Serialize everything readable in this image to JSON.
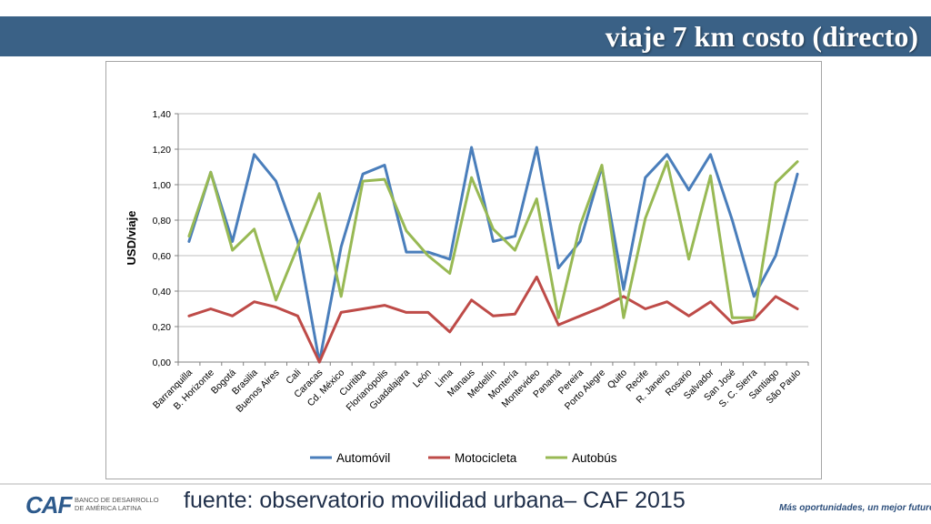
{
  "slide": {
    "title": "viaje 7 km costo (directo)",
    "source": "fuente: observatorio movilidad urbana– CAF 2015",
    "slogan": "Más oportunidades, un mejor futuro.",
    "logo": {
      "mark": "CAF",
      "text_line1": "BANCO DE DESARROLLO",
      "text_line2": "DE AMÉRICA LATINA"
    }
  },
  "colors": {
    "title_bar": "#3a6186",
    "automovil": "#4a7ebb",
    "motocicleta": "#be4b48",
    "autobus": "#98b954"
  },
  "chart_data": {
    "type": "line",
    "title": "",
    "xlabel": "",
    "ylabel": "USD/viaje",
    "ylim": [
      0,
      1.4
    ],
    "yticks": [
      "0,00",
      "0,20",
      "0,40",
      "0,60",
      "0,80",
      "1,00",
      "1,20",
      "1,40"
    ],
    "grid": true,
    "legend_position": "bottom",
    "categories": [
      "Barranquilla",
      "B. Horizonte",
      "Bogotá",
      "Brasilia",
      "Buenos Aires",
      "Cali",
      "Caracas",
      "Cd. México",
      "Curitiba",
      "Florianópolis",
      "Guadalajara",
      "León",
      "Lima",
      "Manaus",
      "Medellín",
      "Montería",
      "Montevideo",
      "Panamá",
      "Pereira",
      "Porto Alegre",
      "Quito",
      "Recife",
      "R. Janeiro",
      "Rosario",
      "Salvador",
      "San José",
      "S. C. Sierra",
      "Santiago",
      "São Paulo"
    ],
    "series": [
      {
        "name": "Automóvil",
        "values": [
          0.68,
          1.07,
          0.68,
          1.17,
          1.02,
          0.68,
          0.0,
          0.65,
          1.06,
          1.11,
          0.62,
          0.62,
          0.58,
          1.21,
          0.68,
          0.71,
          1.21,
          0.53,
          0.68,
          1.1,
          0.41,
          1.04,
          1.17,
          0.97,
          1.17,
          0.8,
          0.37,
          0.6,
          1.06
        ]
      },
      {
        "name": "Motocicleta",
        "values": [
          0.26,
          0.3,
          0.26,
          0.34,
          0.31,
          0.26,
          0.0,
          0.28,
          0.3,
          0.32,
          0.28,
          0.28,
          0.17,
          0.35,
          0.26,
          0.27,
          0.48,
          0.21,
          0.26,
          0.31,
          0.37,
          0.3,
          0.34,
          0.26,
          0.34,
          0.22,
          0.24,
          0.37,
          0.3
        ]
      },
      {
        "name": "Autobús",
        "values": [
          0.71,
          1.07,
          0.63,
          0.75,
          0.35,
          0.65,
          0.95,
          0.37,
          1.02,
          1.03,
          0.74,
          0.6,
          0.5,
          1.04,
          0.75,
          0.63,
          0.92,
          0.25,
          0.77,
          1.11,
          0.25,
          0.81,
          1.13,
          0.58,
          1.05,
          0.25,
          0.25,
          1.01,
          1.13
        ]
      }
    ]
  }
}
